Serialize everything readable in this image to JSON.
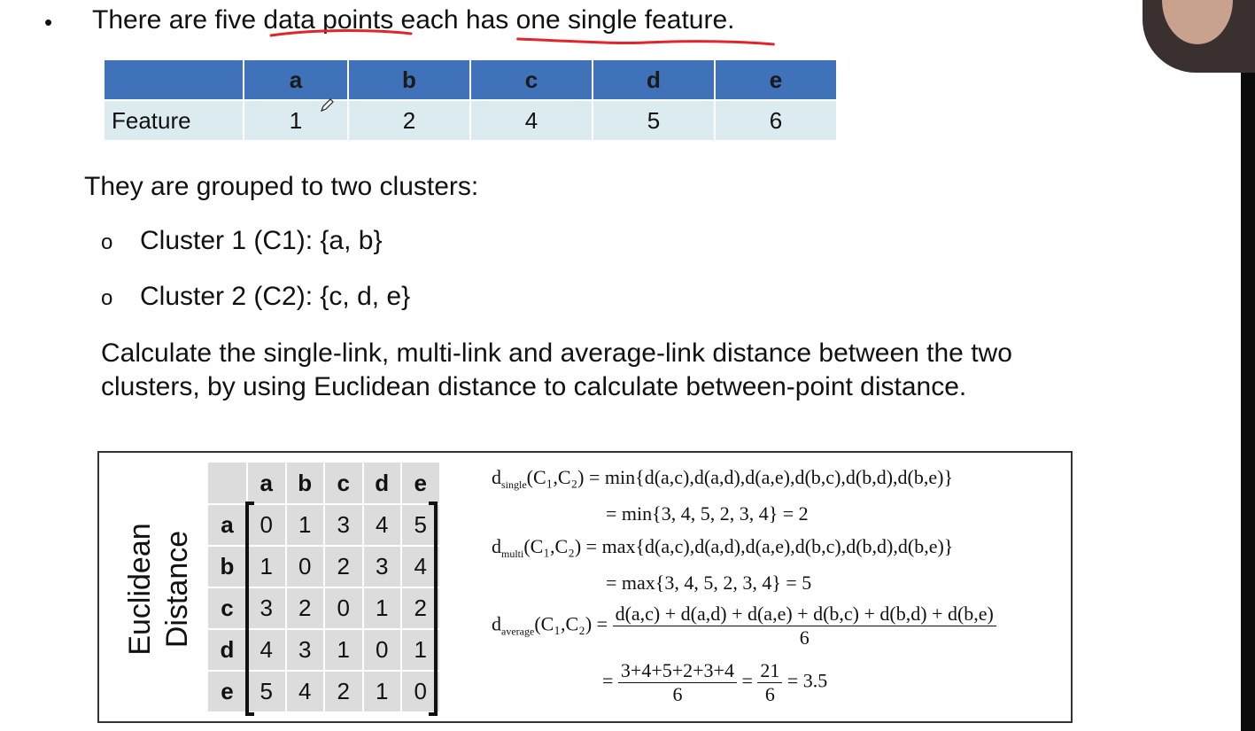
{
  "intro": {
    "bullet": "•",
    "text_before": "There are five ",
    "underline1": "data points",
    "text_middle": " each has ",
    "underline2": "one single feature."
  },
  "feature_table": {
    "headers": [
      "",
      "a",
      "b",
      "c",
      "d",
      "e"
    ],
    "row_label": "Feature",
    "values": [
      "1",
      "2",
      "4",
      "5",
      "6"
    ]
  },
  "grouped_text": "They are grouped to two clusters:",
  "clusters": [
    {
      "bullet": "o",
      "text": "Cluster 1 (C1): {a, b}"
    },
    {
      "bullet": "o",
      "text": "Cluster 2 (C2): {c, d, e}"
    }
  ],
  "question": "Calculate the single-link, multi-link and average-link distance between the two clusters, by using Euclidean distance to calculate between-point distance.",
  "matrix": {
    "title_line1": "Euclidean",
    "title_line2": "Distance",
    "headers": [
      "a",
      "b",
      "c",
      "d",
      "e"
    ],
    "rows": [
      {
        "label": "a",
        "values": [
          "0",
          "1",
          "3",
          "4",
          "5"
        ]
      },
      {
        "label": "b",
        "values": [
          "1",
          "0",
          "2",
          "3",
          "4"
        ]
      },
      {
        "label": "c",
        "values": [
          "3",
          "2",
          "0",
          "1",
          "2"
        ]
      },
      {
        "label": "d",
        "values": [
          "4",
          "3",
          "1",
          "0",
          "1"
        ]
      },
      {
        "label": "e",
        "values": [
          "5",
          "4",
          "2",
          "1",
          "0"
        ]
      }
    ]
  },
  "formulas": {
    "single_label": "d",
    "single_sub": "single",
    "single_rhs": "(C₁,C₂) = min{d(a,c),d(a,d),d(a,e),d(b,c),d(b,d),d(b,e)}",
    "single_eval": "= min{3, 4, 5, 2, 3, 4} =  2",
    "multi_label": "d",
    "multi_sub": "multi",
    "multi_rhs": "(C₁,C₂) = max{d(a,c),d(a,d),d(a,e),d(b,c),d(b,d),d(b,e)}",
    "multi_eval": "= max{3, 4, 5, 2, 3, 4} =  5",
    "avg_label": "d",
    "avg_sub": "average",
    "avg_lhs": "(C₁,C₂) =",
    "avg_num": "d(a,c) + d(a,d) + d(a,e) + d(b,c) + d(b,d) + d(b,e)",
    "avg_den": "6",
    "eval_eq1": "=",
    "eval_num1": "3+4+5+2+3+4",
    "eval_den1": "6",
    "eval_eq2": "=",
    "eval_num2": "21",
    "eval_den2": "6",
    "eval_result": "= 3.5"
  }
}
